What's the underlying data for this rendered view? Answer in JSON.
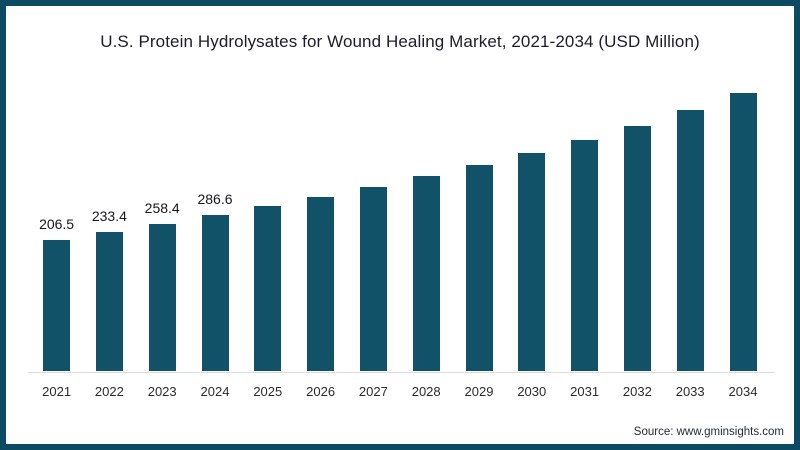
{
  "header": {
    "title": "U.S. Protein Hydrolysates for Wound Healing Market, 2021-2034 (USD Million)"
  },
  "footer": {
    "source_text": "Source: www.gminsights.com"
  },
  "colors": {
    "bar": "#115269",
    "frame": "#0c4a63",
    "axis_line": "#dcdcdc",
    "background": "#ffffff",
    "title_text": "#1c1c2e"
  },
  "chart_data": {
    "type": "bar",
    "title": "U.S. Protein Hydrolysates for Wound Healing Market, 2021-2034 (USD Million)",
    "unit": "USD Million",
    "categories": [
      "2021",
      "2022",
      "2023",
      "2024",
      "2025",
      "2026",
      "2027",
      "2028",
      "2029",
      "2030",
      "2031",
      "2032",
      "2033",
      "2034"
    ],
    "values": [
      206.5,
      233.4,
      258.4,
      286.6,
      315,
      344,
      377,
      412,
      448,
      486,
      527,
      572,
      624,
      678
    ],
    "data_labels": [
      "206.5",
      "233.4",
      "258.4",
      "286.6",
      "",
      "",
      "",
      "",
      "",
      "",
      "",
      "",
      "",
      ""
    ],
    "xlabel": "",
    "ylabel": "",
    "legend": "none",
    "grid": false,
    "y_axis_shown": false,
    "bar_color": "#115269"
  }
}
